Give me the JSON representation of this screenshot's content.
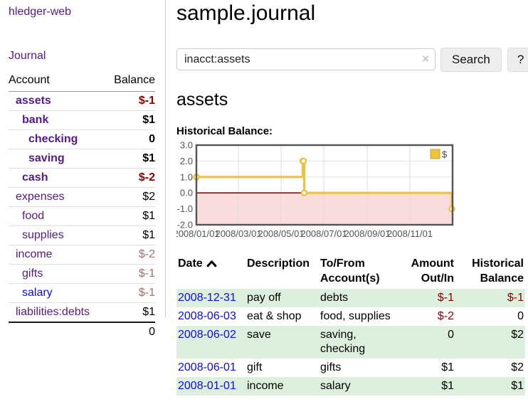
{
  "colors": {
    "link_purple": "#551a8b",
    "link_blue": "#0b0bee",
    "negative_strong": "#8b0000",
    "negative_muted": "#b36b6b",
    "row_shade_green": "#ddf0dd",
    "chart_line": "#edc240",
    "chart_negative_fill": "#fbdcdc",
    "chart_zero_line": "#990000",
    "axis_text": "#545454"
  },
  "sidebar": {
    "brand": "hledger-web",
    "journal_link": "Journal",
    "accounts": {
      "account_header": "Account",
      "balance_header": "Balance",
      "rows": [
        {
          "account": "assets",
          "balance": "$-1",
          "level": 1,
          "bold": true,
          "balance_style": "negative-strong"
        },
        {
          "account": "bank",
          "balance": "$1",
          "level": 2,
          "bold": true,
          "balance_style": "normal"
        },
        {
          "account": "checking",
          "balance": "0",
          "level": 3,
          "bold": true,
          "balance_style": "normal"
        },
        {
          "account": "saving",
          "balance": "$1",
          "level": 3,
          "bold": true,
          "balance_style": "normal"
        },
        {
          "account": "cash",
          "balance": "$-2",
          "level": 2,
          "bold": true,
          "balance_style": "negative-strong"
        },
        {
          "account": "expenses",
          "balance": "$2",
          "level": 1,
          "bold": false,
          "balance_style": "normal"
        },
        {
          "account": "food",
          "balance": "$1",
          "level": 2,
          "bold": false,
          "balance_style": "normal"
        },
        {
          "account": "supplies",
          "balance": "$1",
          "level": 2,
          "bold": false,
          "balance_style": "normal"
        },
        {
          "account": "income",
          "balance": "$-2",
          "level": 1,
          "bold": false,
          "balance_style": "negative-muted"
        },
        {
          "account": "gifts",
          "balance": "$-1",
          "level": 2,
          "bold": false,
          "balance_style": "negative-muted"
        },
        {
          "account": "salary",
          "balance": "$-1",
          "level": 2,
          "bold": false,
          "balance_style": "negative-muted",
          "link_style": "unvisited"
        },
        {
          "account": "liabilities:debts",
          "balance": "$1",
          "level": 1,
          "bold": false,
          "balance_style": "normal"
        }
      ],
      "total": "0"
    }
  },
  "main": {
    "title": "sample.journal",
    "search": {
      "value": "inacct:assets",
      "clear_icon": "×",
      "search_button": "Search",
      "help_button": "?"
    },
    "account_heading": "assets",
    "chart_heading": "Historical Balance:"
  },
  "chart_data": {
    "type": "line",
    "step": true,
    "title": "Historical Balance:",
    "series": [
      {
        "name": "$",
        "color": "#edc240",
        "points": [
          {
            "date": "2008-01-01",
            "value": 1
          },
          {
            "date": "2008-06-01",
            "value": 2
          },
          {
            "date": "2008-06-02",
            "value": 2
          },
          {
            "date": "2008-06-03",
            "value": 0
          },
          {
            "date": "2008-12-31",
            "value": -1
          }
        ]
      }
    ],
    "x_range": [
      "2008-01-01",
      "2009-01-01"
    ],
    "x_tick_dates": [
      "2008-01-01",
      "2008-03-01",
      "2008-05-01",
      "2008-07-01",
      "2008-09-01",
      "2008-11-01"
    ],
    "x_tick_labels": [
      "2008/01/01",
      "2008/03/01",
      "2008/05/01",
      "2008/07/01",
      "2008/09/01",
      "2008/11/01"
    ],
    "y_ticks": [
      3.0,
      2.0,
      1.0,
      0.0,
      -1.0,
      -2.0
    ],
    "ylim": [
      -2,
      3
    ],
    "grid": true,
    "legend": {
      "label": "$",
      "position": "top-right"
    },
    "negative_region": true
  },
  "transactions": {
    "headers": {
      "date": "Date",
      "description": "Description",
      "accounts": "To/From Account(s)",
      "amount": "Amount Out/In",
      "balance": "Historical Balance"
    },
    "rows": [
      {
        "date": "2008-12-31",
        "description": "pay off",
        "accounts": "debts",
        "amount": "$-1",
        "amount_negative": true,
        "balance": "$-1",
        "balance_negative": true,
        "shaded": true
      },
      {
        "date": "2008-06-03",
        "description": "eat & shop",
        "accounts": "food, supplies",
        "amount": "$-2",
        "amount_negative": true,
        "balance": "0",
        "balance_negative": false,
        "shaded": false
      },
      {
        "date": "2008-06-02",
        "description": "save",
        "accounts": "saving, checking",
        "amount": "0",
        "amount_negative": false,
        "balance": "$2",
        "balance_negative": false,
        "shaded": true
      },
      {
        "date": "2008-06-01",
        "description": "gift",
        "accounts": "gifts",
        "amount": "$1",
        "amount_negative": false,
        "balance": "$2",
        "balance_negative": false,
        "shaded": false
      },
      {
        "date": "2008-01-01",
        "description": "income",
        "accounts": "salary",
        "amount": "$1",
        "amount_negative": false,
        "balance": "$1",
        "balance_negative": false,
        "shaded": true
      }
    ]
  }
}
